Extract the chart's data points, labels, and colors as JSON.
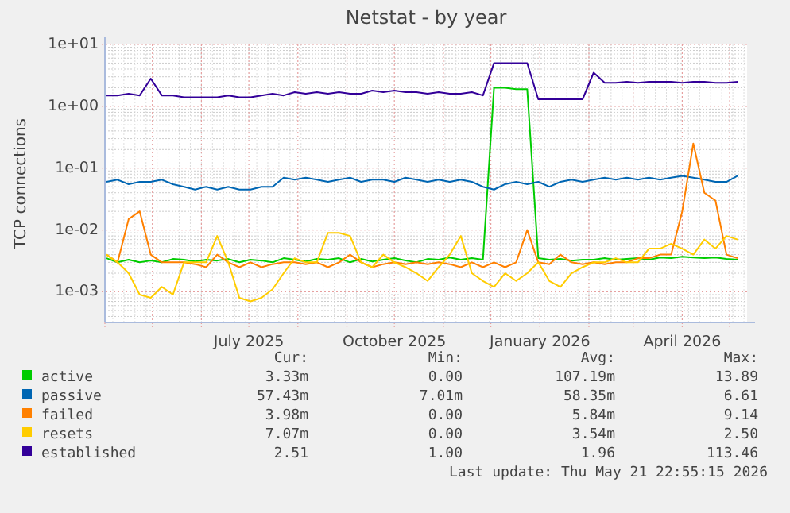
{
  "chart_data": {
    "type": "line",
    "title": "Netstat - by year",
    "ylabel": "TCP connections",
    "log": true,
    "grid": true,
    "legend": "bottom",
    "x": [
      "2025-04-02",
      "2025-04-09",
      "2025-04-16",
      "2025-04-23",
      "2025-04-30",
      "2025-05-07",
      "2025-05-14",
      "2025-05-21",
      "2025-05-28",
      "2025-06-04",
      "2025-06-11",
      "2025-06-18",
      "2025-06-25",
      "2025-07-02",
      "2025-07-09",
      "2025-07-16",
      "2025-07-23",
      "2025-07-30",
      "2025-08-06",
      "2025-08-13",
      "2025-08-20",
      "2025-08-27",
      "2025-09-03",
      "2025-09-10",
      "2025-09-17",
      "2025-09-24",
      "2025-10-01",
      "2025-10-08",
      "2025-10-15",
      "2025-10-22",
      "2025-10-29",
      "2025-11-05",
      "2025-11-12",
      "2025-11-19",
      "2025-11-26",
      "2025-12-03",
      "2025-12-10",
      "2025-12-17",
      "2025-12-24",
      "2025-12-31",
      "2026-01-07",
      "2026-01-14",
      "2026-01-21",
      "2026-01-28",
      "2026-02-04",
      "2026-02-11",
      "2026-02-18",
      "2026-02-25",
      "2026-03-04",
      "2026-03-11",
      "2026-03-18",
      "2026-03-25",
      "2026-04-01",
      "2026-04-08",
      "2026-04-15",
      "2026-04-22",
      "2026-04-29",
      "2026-05-06"
    ],
    "xlim": [
      "2025-04-01",
      "2026-05-12"
    ],
    "xticks": [
      {
        "value": "2025-07-01",
        "label": "July 2025"
      },
      {
        "value": "2025-10-01",
        "label": "October 2025"
      },
      {
        "value": "2026-01-01",
        "label": "January 2026"
      },
      {
        "value": "2026-04-01",
        "label": "April 2026"
      }
    ],
    "ylim": [
      0.00032,
      10
    ],
    "yticks": [
      {
        "value": 0.001,
        "label": "1e-03"
      },
      {
        "value": 0.01,
        "label": "1e-02"
      },
      {
        "value": 0.1,
        "label": "1e-01"
      },
      {
        "value": 1,
        "label": "1e+00"
      },
      {
        "value": 10,
        "label": "1e+01"
      }
    ],
    "series": [
      {
        "name": "active",
        "color": "#00cc00",
        "values": [
          0.0035,
          0.003,
          0.0033,
          0.003,
          0.0032,
          0.003,
          0.0034,
          0.0033,
          0.0031,
          0.0033,
          0.0032,
          0.0034,
          0.003,
          0.0033,
          0.0032,
          0.003,
          0.0035,
          0.0033,
          0.0031,
          0.0034,
          0.0033,
          0.0035,
          0.003,
          0.0034,
          0.0031,
          0.0033,
          0.0035,
          0.0032,
          0.003,
          0.0034,
          0.0033,
          0.0036,
          0.0033,
          0.0035,
          0.0033,
          2.0,
          2.0,
          1.9,
          1.9,
          0.0035,
          0.0033,
          0.0034,
          0.0032,
          0.0033,
          0.0033,
          0.0035,
          0.0033,
          0.0034,
          0.0035,
          0.0033,
          0.0036,
          0.0035,
          0.0037,
          0.0036,
          0.0035,
          0.0036,
          0.0034,
          0.0033
        ]
      },
      {
        "name": "passive",
        "color": "#0066b3",
        "values": [
          0.06,
          0.065,
          0.055,
          0.06,
          0.06,
          0.065,
          0.055,
          0.05,
          0.045,
          0.05,
          0.045,
          0.05,
          0.045,
          0.045,
          0.05,
          0.05,
          0.07,
          0.065,
          0.07,
          0.065,
          0.06,
          0.065,
          0.07,
          0.06,
          0.065,
          0.065,
          0.06,
          0.07,
          0.065,
          0.06,
          0.065,
          0.06,
          0.065,
          0.06,
          0.05,
          0.045,
          0.055,
          0.06,
          0.055,
          0.06,
          0.05,
          0.06,
          0.065,
          0.06,
          0.065,
          0.07,
          0.065,
          0.07,
          0.065,
          0.07,
          0.065,
          0.07,
          0.075,
          0.07,
          0.065,
          0.06,
          0.06,
          0.075
        ]
      },
      {
        "name": "failed",
        "color": "#ff8000",
        "values": [
          0.004,
          0.003,
          0.015,
          0.02,
          0.004,
          0.003,
          0.003,
          0.003,
          0.0028,
          0.0025,
          0.004,
          0.003,
          0.0025,
          0.003,
          0.0025,
          0.0028,
          0.003,
          0.003,
          0.0028,
          0.003,
          0.0025,
          0.003,
          0.004,
          0.003,
          0.0025,
          0.0028,
          0.003,
          0.0028,
          0.003,
          0.0028,
          0.003,
          0.0028,
          0.0025,
          0.003,
          0.0025,
          0.003,
          0.0025,
          0.003,
          0.01,
          0.003,
          0.0028,
          0.004,
          0.003,
          0.0028,
          0.003,
          0.0028,
          0.003,
          0.003,
          0.0035,
          0.0035,
          0.004,
          0.004,
          0.02,
          0.25,
          0.04,
          0.03,
          0.004,
          0.0035
        ]
      },
      {
        "name": "resets",
        "color": "#ffcc00",
        "values": [
          0.004,
          0.003,
          0.002,
          0.0009,
          0.0008,
          0.0012,
          0.0009,
          0.003,
          0.003,
          0.003,
          0.008,
          0.003,
          0.0008,
          0.0007,
          0.0008,
          0.0011,
          0.002,
          0.0035,
          0.003,
          0.003,
          0.009,
          0.009,
          0.008,
          0.003,
          0.0025,
          0.004,
          0.003,
          0.0025,
          0.002,
          0.0015,
          0.0025,
          0.004,
          0.008,
          0.002,
          0.0015,
          0.0012,
          0.002,
          0.0015,
          0.002,
          0.003,
          0.0015,
          0.0012,
          0.002,
          0.0025,
          0.003,
          0.003,
          0.0035,
          0.003,
          0.003,
          0.005,
          0.005,
          0.006,
          0.005,
          0.004,
          0.007,
          0.005,
          0.008,
          0.007
        ]
      },
      {
        "name": "established",
        "color": "#330099",
        "values": [
          1.5,
          1.5,
          1.6,
          1.5,
          2.8,
          1.5,
          1.5,
          1.4,
          1.4,
          1.4,
          1.4,
          1.5,
          1.4,
          1.4,
          1.5,
          1.6,
          1.5,
          1.7,
          1.6,
          1.7,
          1.6,
          1.7,
          1.6,
          1.6,
          1.8,
          1.7,
          1.8,
          1.7,
          1.7,
          1.6,
          1.7,
          1.6,
          1.6,
          1.7,
          1.5,
          5.0,
          5.0,
          5.0,
          5.0,
          1.3,
          1.3,
          1.3,
          1.3,
          1.3,
          3.5,
          2.4,
          2.4,
          2.5,
          2.4,
          2.5,
          2.5,
          2.5,
          2.4,
          2.5,
          2.5,
          2.4,
          2.4,
          2.5
        ]
      }
    ],
    "annotations": [
      "Cur:",
      "Min:",
      "Avg:",
      "Max:",
      "3.33m",
      "0.00",
      "107.19m",
      "13.89",
      "57.43m",
      "7.01m",
      "58.35m",
      "6.61",
      "3.98m",
      "0.00",
      "5.84m",
      "9.14",
      "7.07m",
      "0.00",
      "3.54m",
      "2.50",
      "2.51",
      "1.00",
      "1.96",
      "113.46",
      "Last update: Thu May 21 22:55:15 2026"
    ]
  }
}
